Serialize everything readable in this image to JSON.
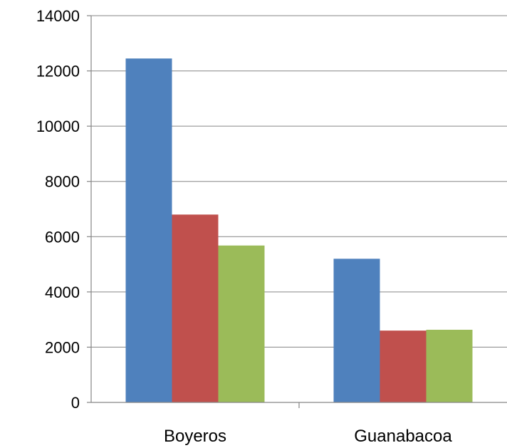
{
  "chart_data": {
    "type": "bar",
    "categories": [
      "Boyeros",
      "Guanabacoa"
    ],
    "series": [
      {
        "values": [
          12450,
          5200
        ],
        "color": "#4F81BD"
      },
      {
        "values": [
          6800,
          2600
        ],
        "color": "#C0504D"
      },
      {
        "values": [
          5680,
          2630
        ],
        "color": "#9BBB59"
      }
    ],
    "ylim": [
      0,
      14000
    ],
    "yticks": [
      "0",
      "2000",
      "4000",
      "6000",
      "8000",
      "10000",
      "12000",
      "14000"
    ],
    "grid": true,
    "legend": "none"
  }
}
